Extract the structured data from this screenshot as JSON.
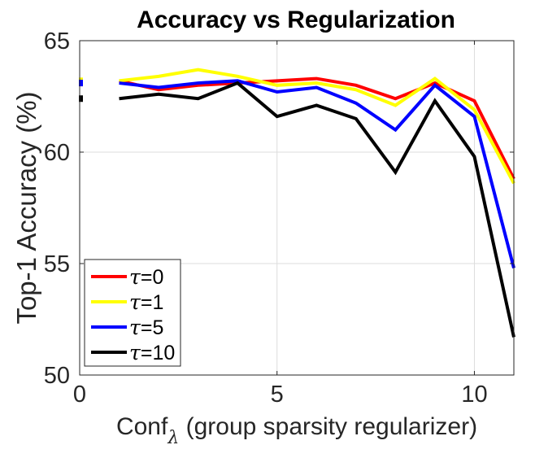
{
  "chart_data": {
    "type": "line",
    "title": "Accuracy vs Regularization",
    "xlabel_main": "Conf",
    "xlabel_sub": "λ",
    "xlabel_rest": " (group sparsity regularizer)",
    "ylabel": "Top-1 Accuracy (%)",
    "xlim": [
      0,
      11
    ],
    "ylim": [
      50,
      65
    ],
    "xticks": [
      0,
      5,
      10
    ],
    "yticks": [
      50,
      55,
      60,
      65
    ],
    "grid": true,
    "legend_position": "bottom-left",
    "legend_symbol": "τ",
    "series": [
      {
        "name": "τ=0",
        "legend_value": "=0",
        "color": "#ff0000",
        "x0": 0,
        "y0": 63.1,
        "x": [
          1,
          2,
          3,
          4,
          5,
          6,
          7,
          8,
          9,
          10,
          11
        ],
        "y": [
          63.2,
          62.8,
          63.0,
          63.1,
          63.2,
          63.3,
          63.0,
          62.4,
          63.1,
          62.3,
          58.8
        ]
      },
      {
        "name": "τ=1",
        "legend_value": "=1",
        "color": "#ffff00",
        "x0": 0,
        "y0": 63.2,
        "x": [
          1,
          2,
          3,
          4,
          5,
          6,
          7,
          8,
          9,
          10,
          11
        ],
        "y": [
          63.2,
          63.4,
          63.7,
          63.4,
          63.0,
          63.1,
          62.8,
          62.1,
          63.3,
          61.9,
          58.6
        ]
      },
      {
        "name": "τ=5",
        "legend_value": "=5",
        "color": "#0000ff",
        "x0": 0,
        "y0": 63.1,
        "x": [
          1,
          2,
          3,
          4,
          5,
          6,
          7,
          8,
          9,
          10,
          11
        ],
        "y": [
          63.1,
          62.9,
          63.1,
          63.2,
          62.7,
          62.9,
          62.2,
          61.0,
          63.0,
          61.6,
          54.8
        ]
      },
      {
        "name": "τ=10",
        "legend_value": "=10",
        "color": "#000000",
        "x0": 0,
        "y0": 62.4,
        "x": [
          1,
          2,
          3,
          4,
          5,
          6,
          7,
          8,
          9,
          10,
          11
        ],
        "y": [
          62.4,
          62.6,
          62.4,
          63.1,
          61.6,
          62.1,
          61.5,
          59.1,
          62.3,
          59.8,
          51.7
        ]
      }
    ]
  }
}
